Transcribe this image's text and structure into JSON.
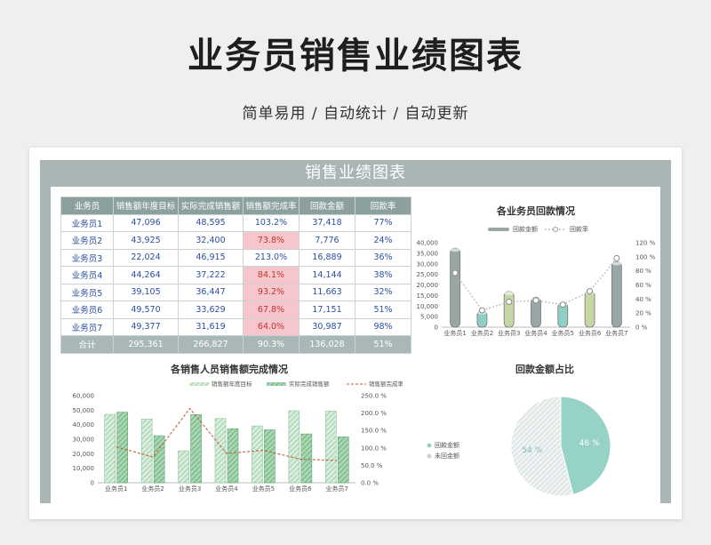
{
  "page": {
    "title": "业务员销售业绩图表",
    "subtitle": "简单易用 / 自动统计 / 自动更新",
    "sheet_title": "销售业绩图表"
  },
  "table": {
    "headers": [
      "业务员",
      "销售额年度目标",
      "实际完成销售额",
      "销售额完成率",
      "回款金额",
      "回款率"
    ],
    "rows": [
      [
        "业务员1",
        "47,096",
        "48,595",
        "103.2%",
        "37,418",
        "77%"
      ],
      [
        "业务员2",
        "43,925",
        "32,400",
        "73.8%",
        "7,776",
        "24%"
      ],
      [
        "业务员3",
        "22,024",
        "46,915",
        "213.0%",
        "16,889",
        "36%"
      ],
      [
        "业务员4",
        "44,264",
        "37,222",
        "84.1%",
        "14,144",
        "38%"
      ],
      [
        "业务员5",
        "39,105",
        "36,447",
        "93.2%",
        "11,663",
        "32%"
      ],
      [
        "业务员6",
        "49,570",
        "33,629",
        "67.8%",
        "17,151",
        "51%"
      ],
      [
        "业务员7",
        "49,377",
        "31,619",
        "64.0%",
        "30,987",
        "98%"
      ]
    ],
    "highlighted_rows": [
      1,
      3,
      4,
      5,
      6
    ],
    "total": [
      "合计",
      "295,361",
      "266,827",
      "90.3%",
      "136,028",
      "51%"
    ],
    "colors": {
      "header": "#8da0a0",
      "highlight": "#f6c6cc",
      "highlight_text": "#c0352e",
      "text": "#2b4fa0"
    }
  },
  "chart_data": [
    {
      "type": "bar",
      "title": "各业务员回款情况",
      "categories": [
        "业务员1",
        "业务员2",
        "业务员3",
        "业务员4",
        "业务员5",
        "业务员6",
        "业务员7"
      ],
      "series": [
        {
          "name": "回款金额",
          "axis": "left",
          "values": [
            37418,
            7776,
            16889,
            14144,
            11663,
            17151,
            30987
          ],
          "colors": [
            "#9aa6a6",
            "#8fcfc4",
            "#c4d6a4",
            "#9aa6a6",
            "#8fcfc4",
            "#c4d6a4",
            "#9aa6a6"
          ]
        },
        {
          "name": "回款率",
          "axis": "right",
          "kind": "line",
          "values": [
            77,
            24,
            36,
            38,
            32,
            51,
            98
          ]
        }
      ],
      "ylim": [
        0,
        40000
      ],
      "yticks": [
        "0",
        "5,000",
        "10,000",
        "15,000",
        "20,000",
        "25,000",
        "30,000",
        "35,000",
        "40,000"
      ],
      "y2lim": [
        0,
        120
      ],
      "y2ticks": [
        "0 %",
        "20 %",
        "40 %",
        "60 %",
        "80 %",
        "100 %",
        "120 %"
      ],
      "legend": "top",
      "grid": false
    },
    {
      "type": "bar",
      "title": "各销售人员销售额完成情况",
      "categories": [
        "业务员1",
        "业务员2",
        "业务员3",
        "业务员4",
        "业务员5",
        "业务员6",
        "业务员7"
      ],
      "series": [
        {
          "name": "销售额年度目标",
          "axis": "left",
          "values": [
            47096,
            43925,
            22024,
            44264,
            39105,
            49570,
            49377
          ],
          "color": "#b7dcc0"
        },
        {
          "name": "实际完成销售额",
          "axis": "left",
          "values": [
            48595,
            32400,
            46915,
            37222,
            36447,
            33629,
            31619
          ],
          "color": "#7dbf8e"
        },
        {
          "name": "销售额完成率",
          "axis": "right",
          "kind": "line",
          "values": [
            103.2,
            73.8,
            213.0,
            84.1,
            93.2,
            67.8,
            64.0
          ],
          "color": "#c0623a"
        }
      ],
      "ylim": [
        0,
        60000
      ],
      "yticks": [
        "0",
        "10,000",
        "20,000",
        "30,000",
        "40,000",
        "50,000",
        "60,000"
      ],
      "y2lim": [
        0,
        250
      ],
      "y2ticks": [
        "0.0 %",
        "50.0 %",
        "100.0 %",
        "150.0 %",
        "200.0 %",
        "250.0 %"
      ],
      "legend": "top",
      "grid": false
    },
    {
      "type": "pie",
      "title": "回款金额占比",
      "categories": [
        "回款金额",
        "未回金额"
      ],
      "values": [
        46,
        54
      ],
      "labels": [
        "46 %",
        "54 %"
      ],
      "colors": [
        "#97d2c7",
        "#d7dfdf"
      ],
      "legend": "left"
    }
  ]
}
